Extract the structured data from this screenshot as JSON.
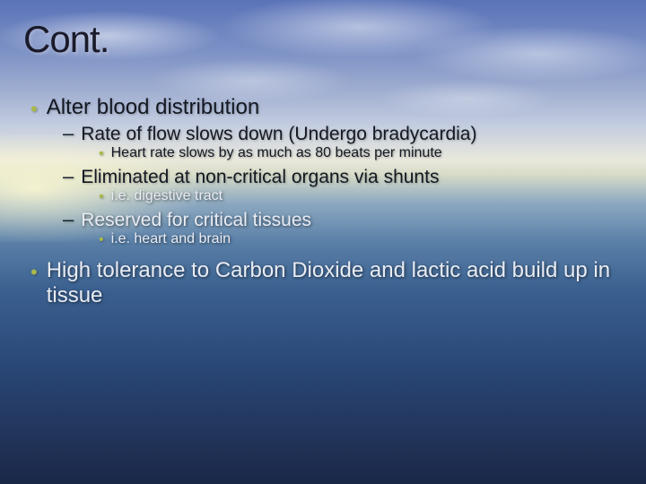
{
  "title": "Cont.",
  "colors": {
    "bullet_green": "#a8b84a",
    "text_dark": "#141822",
    "text_light": "#e8ecf4",
    "sky_top": "#5a73b8",
    "horizon": "#e8e8dc",
    "sea_bottom": "#1a2848"
  },
  "typography": {
    "title_fontsize": 42,
    "lvl1_fontsize": 24,
    "lvl2_fontsize": 21,
    "lvl3_fontsize": 16,
    "font_family": "Verdana"
  },
  "items": {
    "i1": "Alter blood distribution",
    "i1a": "Rate of flow slows down (Undergo bradycardia)",
    "i1a1": "Heart rate slows by as much as 80 beats per minute",
    "i1b": "Eliminated at non-critical organs via shunts",
    "i1b1": "i.e. digestive tract",
    "i1c": "Reserved for critical tissues",
    "i1c1": "i.e. heart and brain",
    "i2": "High tolerance to Carbon Dioxide and lactic acid build up in tissue"
  }
}
